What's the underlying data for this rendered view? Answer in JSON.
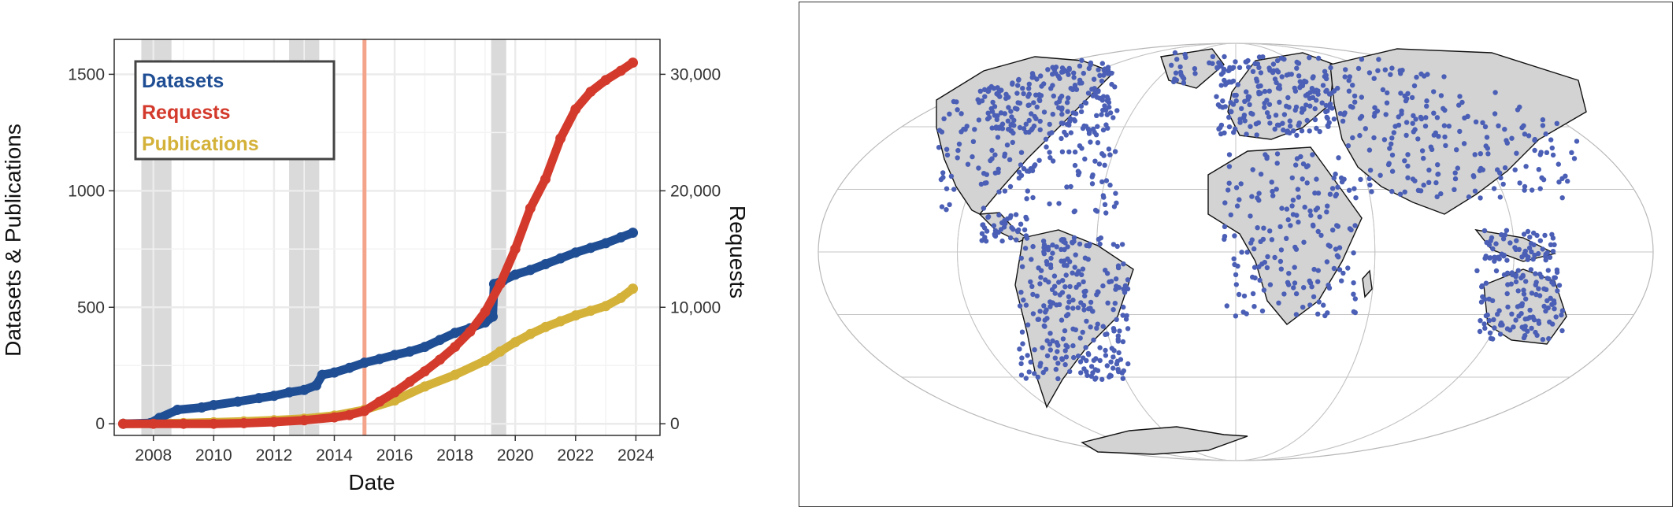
{
  "chart_data": [
    {
      "type": "line",
      "xlabel": "Date",
      "ylabel_left": "Datasets & Publications",
      "ylabel_right": "Requests",
      "xlim": [
        2006.7,
        2024.8
      ],
      "ylim_left": [
        -50,
        1650
      ],
      "ylim_right": [
        -1000,
        33000
      ],
      "x_ticks": [
        2008,
        2010,
        2012,
        2014,
        2016,
        2018,
        2020,
        2022,
        2024
      ],
      "y_left_ticks": [
        0,
        500,
        1000,
        1500
      ],
      "y_right_ticks": [
        0,
        10000,
        20000,
        30000
      ],
      "y_right_tick_labels": [
        "0",
        "10,000",
        "20,000",
        "30,000"
      ],
      "grid": true,
      "legend_position": "top-left",
      "shaded_periods": [
        [
          2007.6,
          2008.6
        ],
        [
          2012.5,
          2013.5
        ],
        [
          2019.2,
          2019.7
        ]
      ],
      "vertical_line": 2015.0,
      "colors": {
        "Datasets": "#1f4e94",
        "Requests": "#d33a2c",
        "Publications": "#d4b23a",
        "shade": "#dadada",
        "vline": "#f4a48b"
      },
      "series": [
        {
          "name": "Datasets",
          "axis": "left",
          "x": [
            2007.0,
            2007.9,
            2008.2,
            2008.8,
            2009.6,
            2010.0,
            2010.8,
            2011.5,
            2012.0,
            2012.5,
            2013.0,
            2013.4,
            2013.6,
            2014.0,
            2014.5,
            2015.0,
            2015.5,
            2016.0,
            2016.5,
            2017.0,
            2017.5,
            2018.0,
            2018.5,
            2019.0,
            2019.25,
            2019.3,
            2019.6,
            2020.0,
            2020.5,
            2021.0,
            2021.5,
            2022.0,
            2022.5,
            2023.0,
            2023.5,
            2023.9
          ],
          "y": [
            0,
            3,
            25,
            60,
            70,
            80,
            95,
            110,
            120,
            135,
            145,
            165,
            210,
            220,
            240,
            262,
            278,
            295,
            310,
            330,
            360,
            390,
            410,
            435,
            460,
            600,
            615,
            640,
            660,
            685,
            710,
            735,
            755,
            775,
            800,
            820
          ]
        },
        {
          "name": "Requests",
          "axis": "right",
          "x": [
            2007.0,
            2008.0,
            2009.0,
            2010.0,
            2011.0,
            2012.0,
            2013.0,
            2014.0,
            2014.5,
            2015.0,
            2015.5,
            2016.0,
            2016.5,
            2017.0,
            2017.5,
            2018.0,
            2018.5,
            2019.0,
            2019.5,
            2020.0,
            2020.5,
            2021.0,
            2021.5,
            2022.0,
            2022.5,
            2023.0,
            2023.5,
            2023.9
          ],
          "y": [
            0,
            0,
            0,
            0,
            50,
            150,
            300,
            550,
            750,
            1100,
            1900,
            2700,
            3600,
            4500,
            5500,
            6600,
            7900,
            9600,
            12000,
            15000,
            18500,
            21000,
            24500,
            27000,
            28500,
            29500,
            30300,
            31000
          ]
        },
        {
          "name": "Publications",
          "axis": "left",
          "x": [
            2007.0,
            2008.0,
            2009.0,
            2010.0,
            2011.0,
            2012.0,
            2013.0,
            2014.0,
            2015.0,
            2016.0,
            2017.0,
            2018.0,
            2019.0,
            2019.5,
            2020.0,
            2020.5,
            2021.0,
            2021.5,
            2022.0,
            2022.5,
            2023.0,
            2023.5,
            2023.9
          ],
          "y": [
            0,
            1,
            3,
            6,
            10,
            15,
            22,
            35,
            60,
            100,
            160,
            210,
            270,
            310,
            350,
            385,
            415,
            440,
            465,
            485,
            505,
            540,
            580
          ]
        }
      ]
    },
    {
      "type": "scatter",
      "projection": "Mollweide",
      "land_color": "#d3d3d3",
      "point_color": "#4a5fb5",
      "graticule": true
    }
  ]
}
